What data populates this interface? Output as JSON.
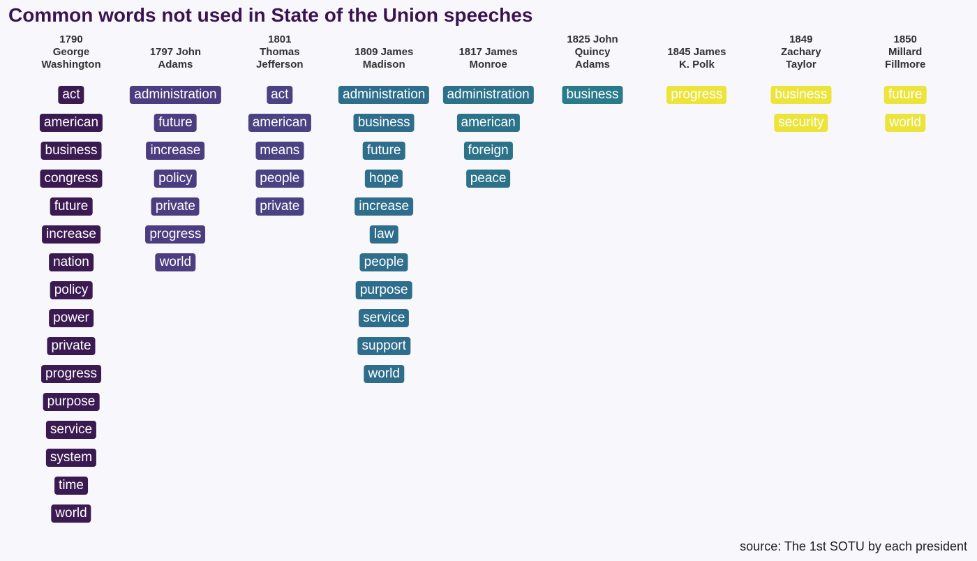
{
  "title": "Common words not used in State of the Union speeches",
  "source": "source: The 1st SOTU by each president",
  "chart_data": {
    "type": "table",
    "columns": [
      {
        "header": "1790\nGeorge\nWashington",
        "color": "#3b1a52",
        "words": [
          "act",
          "american",
          "business",
          "congress",
          "future",
          "increase",
          "nation",
          "policy",
          "power",
          "private",
          "progress",
          "purpose",
          "service",
          "system",
          "time",
          "world"
        ]
      },
      {
        "header": "1797 John\nAdams",
        "color": "#4b3d7f",
        "words": [
          "administration",
          "future",
          "increase",
          "policy",
          "private",
          "progress",
          "world"
        ]
      },
      {
        "header": "1801\nThomas\nJefferson",
        "color": "#4a4282",
        "words": [
          "act",
          "american",
          "means",
          "people",
          "private"
        ]
      },
      {
        "header": "1809 James\nMadison",
        "color": "#2e6e8c",
        "words": [
          "administration",
          "business",
          "future",
          "hope",
          "increase",
          "law",
          "people",
          "purpose",
          "service",
          "support",
          "world"
        ]
      },
      {
        "header": "1817 James\nMonroe",
        "color": "#2c7389",
        "words": [
          "administration",
          "american",
          "foreign",
          "peace"
        ]
      },
      {
        "header": "1825 John\nQuincy\nAdams",
        "color": "#297a8a",
        "words": [
          "business"
        ]
      },
      {
        "header": "1845 James\nK. Polk",
        "color": "#ece43a",
        "words": [
          "progress"
        ]
      },
      {
        "header": "1849\nZachary\nTaylor",
        "color": "#ece43a",
        "words": [
          "business",
          "security"
        ]
      },
      {
        "header": "1850\nMillard\nFillmore",
        "color": "#ece43a",
        "words": [
          "future",
          "world"
        ]
      }
    ]
  }
}
